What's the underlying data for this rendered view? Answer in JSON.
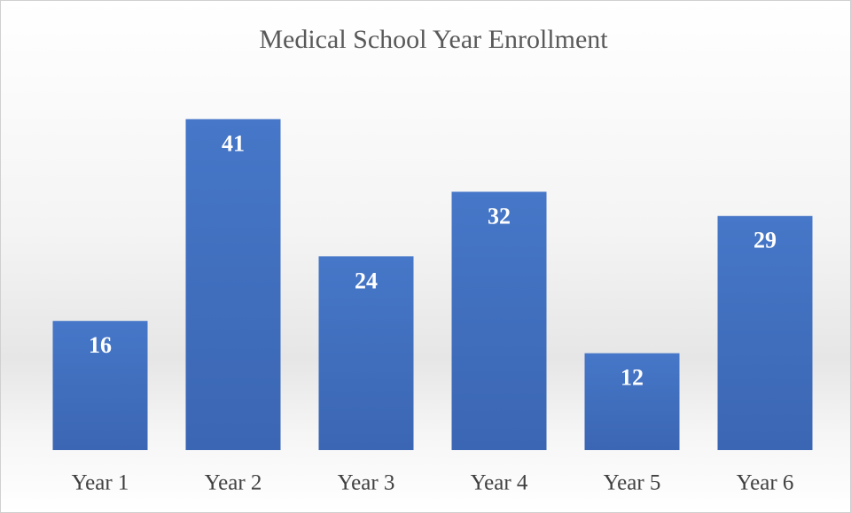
{
  "chart_data": {
    "type": "bar",
    "title": "Medical School Year Enrollment",
    "categories": [
      "Year 1",
      "Year 2",
      "Year 3",
      "Year 4",
      "Year 5",
      "Year 6"
    ],
    "values": [
      16,
      41,
      24,
      32,
      12,
      29
    ],
    "color": "#4472c4",
    "ylim": [
      0,
      45
    ]
  }
}
